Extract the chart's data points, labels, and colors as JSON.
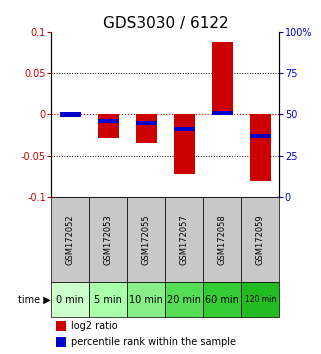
{
  "title": "GDS3030 / 6122",
  "samples": [
    "GSM172052",
    "GSM172053",
    "GSM172055",
    "GSM172057",
    "GSM172058",
    "GSM172059"
  ],
  "time_labels": [
    "0 min",
    "5 min",
    "10 min",
    "20 min",
    "60 min",
    "120 min"
  ],
  "log2_ratio": [
    0.0,
    -0.028,
    -0.035,
    -0.072,
    0.088,
    -0.08
  ],
  "percentile_rank": [
    50,
    46,
    45,
    41,
    51,
    37
  ],
  "ylim": [
    -0.1,
    0.1
  ],
  "yticks_left": [
    -0.1,
    -0.05,
    0,
    0.05,
    0.1
  ],
  "yticks_right": [
    0,
    25,
    50,
    75,
    100
  ],
  "bar_color_red": "#cc0000",
  "bar_color_blue": "#0000cc",
  "bg_color_sample": "#c8c8c8",
  "time_colors": [
    "#ccffcc",
    "#aaffaa",
    "#88ee88",
    "#55dd55",
    "#33cc33",
    "#22bb22"
  ],
  "title_fontsize": 11,
  "tick_fontsize": 7,
  "sample_fontsize": 6,
  "time_fontsize": 7,
  "legend_fontsize": 7
}
